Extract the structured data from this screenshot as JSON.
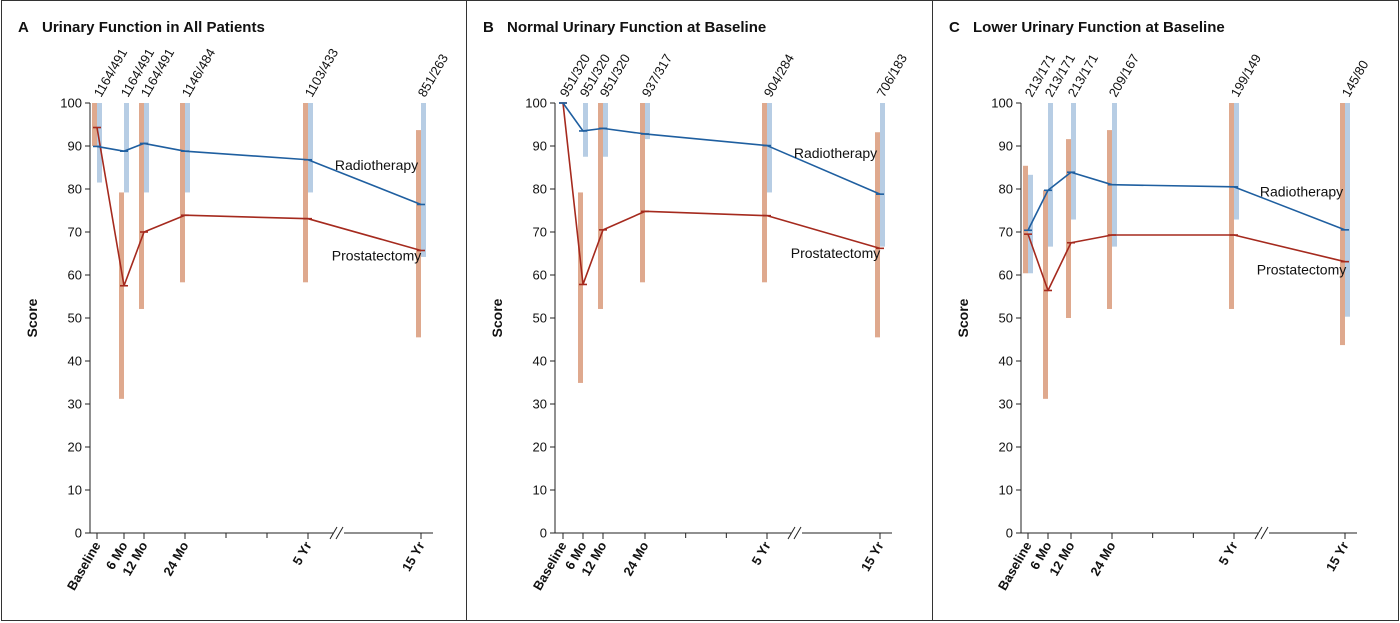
{
  "colors": {
    "radiotherapy_line": "#1f5fa0",
    "prostatectomy_line": "#a52a1e",
    "radiotherapy_bar": "#b7cde4",
    "prostatectomy_bar": "#dfa98e",
    "axis": "#222222"
  },
  "chart_data": [
    {
      "type": "line",
      "panel": "A",
      "title": "Urinary Function in All Patients",
      "ylabel": "Score",
      "xlabel": "",
      "ylim": [
        0,
        100
      ],
      "yticks": [
        0,
        10,
        20,
        30,
        40,
        50,
        60,
        70,
        80,
        90,
        100
      ],
      "grid": false,
      "axis_break_after": "5 Yr",
      "categories": [
        "Baseline",
        "6 Mo",
        "12 Mo",
        "24 Mo",
        "5 Yr",
        "15 Yr"
      ],
      "n_labels": [
        "1164/491",
        "1164/491",
        "1164/491",
        "1146/484",
        "1103/433",
        "851/263"
      ],
      "series": [
        {
          "name": "Radiotherapy",
          "values": [
            89.9,
            88.8,
            90.6,
            88.8,
            86.8,
            76.4
          ],
          "ranges": [
            [
              81.5,
              100
            ],
            [
              79.2,
              100
            ],
            [
              79.2,
              100
            ],
            [
              79.2,
              100
            ],
            [
              79.2,
              100
            ],
            [
              64.2,
              100
            ]
          ]
        },
        {
          "name": "Prostatectomy",
          "values": [
            94.3,
            57.5,
            70.0,
            73.9,
            73.1,
            65.7
          ],
          "ranges": [
            [
              90.0,
              100
            ],
            [
              31.2,
              79.2
            ],
            [
              52.1,
              100
            ],
            [
              58.3,
              100
            ],
            [
              58.3,
              100
            ],
            [
              45.5,
              93.7
            ]
          ]
        }
      ]
    },
    {
      "type": "line",
      "panel": "B",
      "title": "Normal Urinary Function at Baseline",
      "ylabel": "Score",
      "xlabel": "",
      "ylim": [
        0,
        100
      ],
      "yticks": [
        0,
        10,
        20,
        30,
        40,
        50,
        60,
        70,
        80,
        90,
        100
      ],
      "grid": false,
      "axis_break_after": "5 Yr",
      "categories": [
        "Baseline",
        "6 Mo",
        "12 Mo",
        "24 Mo",
        "5 Yr",
        "15 Yr"
      ],
      "n_labels": [
        "951/320",
        "951/320",
        "951/320",
        "937/317",
        "904/284",
        "706/183"
      ],
      "series": [
        {
          "name": "Radiotherapy",
          "values": [
            100,
            93.5,
            94.1,
            92.8,
            90.1,
            78.8
          ],
          "ranges": [
            [
              100,
              100
            ],
            [
              87.5,
              100
            ],
            [
              87.5,
              100
            ],
            [
              91.6,
              100
            ],
            [
              79.2,
              100
            ],
            [
              66.6,
              100
            ]
          ]
        },
        {
          "name": "Prostatectomy",
          "values": [
            100,
            57.8,
            70.5,
            74.8,
            73.8,
            66.2
          ],
          "ranges": [
            [
              100,
              100
            ],
            [
              34.9,
              79.2
            ],
            [
              52.1,
              100
            ],
            [
              58.3,
              100
            ],
            [
              58.3,
              100
            ],
            [
              45.5,
              93.2
            ]
          ]
        }
      ]
    },
    {
      "type": "line",
      "panel": "C",
      "title": "Lower Urinary Function at Baseline",
      "ylabel": "Score",
      "xlabel": "",
      "ylim": [
        0,
        100
      ],
      "yticks": [
        0,
        10,
        20,
        30,
        40,
        50,
        60,
        70,
        80,
        90,
        100
      ],
      "grid": false,
      "axis_break_after": "5 Yr",
      "categories": [
        "Baseline",
        "6 Mo",
        "12 Mo",
        "24 Mo",
        "5 Yr",
        "15 Yr"
      ],
      "n_labels": [
        "213/171",
        "213/171",
        "213/171",
        "209/167",
        "199/149",
        "145/80"
      ],
      "series": [
        {
          "name": "Radiotherapy",
          "values": [
            70.4,
            79.7,
            83.9,
            81.0,
            80.5,
            70.5
          ],
          "ranges": [
            [
              60.4,
              83.3
            ],
            [
              66.6,
              100
            ],
            [
              72.9,
              100
            ],
            [
              66.6,
              100
            ],
            [
              72.9,
              100
            ],
            [
              50.3,
              100
            ]
          ]
        },
        {
          "name": "Prostatectomy",
          "values": [
            69.5,
            56.4,
            67.5,
            69.3,
            69.3,
            63.1
          ],
          "ranges": [
            [
              60.4,
              85.4
            ],
            [
              31.2,
              79.7
            ],
            [
              50.0,
              91.6
            ],
            [
              52.1,
              93.7
            ],
            [
              52.1,
              100
            ],
            [
              43.7,
              100
            ]
          ]
        }
      ]
    }
  ]
}
